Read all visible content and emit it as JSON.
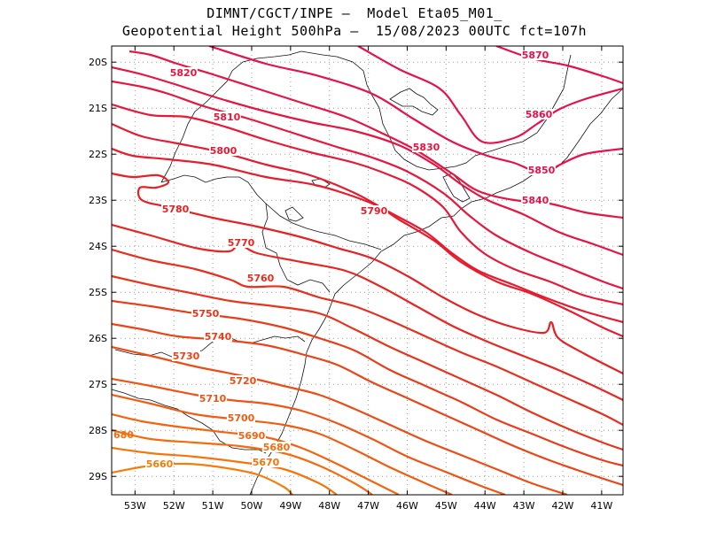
{
  "title": {
    "line1": "DIMNT/CGCT/INPE —  Model Eta05_M01_",
    "line2": "Geopotential Height 500hPa —  15/08/2023 00UTC fct=107h"
  },
  "map_data": {
    "type": "contour-map",
    "variable": "Geopotential Height 500hPa",
    "lat_ticks": [
      "20S",
      "21S",
      "22S",
      "23S",
      "24S",
      "25S",
      "26S",
      "27S",
      "28S",
      "29S"
    ],
    "lon_ticks": [
      "53W",
      "52W",
      "51W",
      "50W",
      "49W",
      "48W",
      "47W",
      "46W",
      "45W",
      "44W",
      "43W",
      "42W",
      "41W"
    ],
    "contour_interval": 10,
    "contours": [
      {
        "value": 5870,
        "label": "5870",
        "color": "#e8104c"
      },
      {
        "value": 5860,
        "label": "5860",
        "color": "#e8104c"
      },
      {
        "value": 5850,
        "label": "5850",
        "color": "#e8104c"
      },
      {
        "value": 5840,
        "label": "5840",
        "color": "#e81444"
      },
      {
        "value": 5830,
        "label": "5830",
        "color": "#e81440"
      },
      {
        "value": 5820,
        "label": "5820",
        "color": "#e8163c"
      },
      {
        "value": 5810,
        "label": "5810",
        "color": "#e81836"
      },
      {
        "value": 5800,
        "label": "5800",
        "color": "#e81a30"
      },
      {
        "value": 5790,
        "label": "5790",
        "color": "#e81c2a"
      },
      {
        "value": 5780,
        "label": "5780",
        "color": "#e82024"
      },
      {
        "value": 5770,
        "label": "5770",
        "color": "#e82620"
      },
      {
        "value": 5760,
        "label": "5760",
        "color": "#e82e1c"
      },
      {
        "value": 5750,
        "label": "5750",
        "color": "#e8341a"
      },
      {
        "value": 5740,
        "label": "5740",
        "color": "#ea3c18"
      },
      {
        "value": 5730,
        "label": "5730",
        "color": "#ec4416"
      },
      {
        "value": 5720,
        "label": "5720",
        "color": "#ee4c14"
      },
      {
        "value": 5710,
        "label": "5710",
        "color": "#f05412"
      },
      {
        "value": 5700,
        "label": "5700",
        "color": "#f25c10"
      },
      {
        "value": 5690,
        "label": "5690",
        "color": "#f4640e"
      },
      {
        "value": 5680,
        "label": "5680",
        "color": "#f66c0c"
      },
      {
        "value": 5670,
        "label": "5670",
        "color": "#f7740a"
      },
      {
        "value": 5660,
        "label": "5660",
        "color": "#f87c08"
      }
    ]
  }
}
